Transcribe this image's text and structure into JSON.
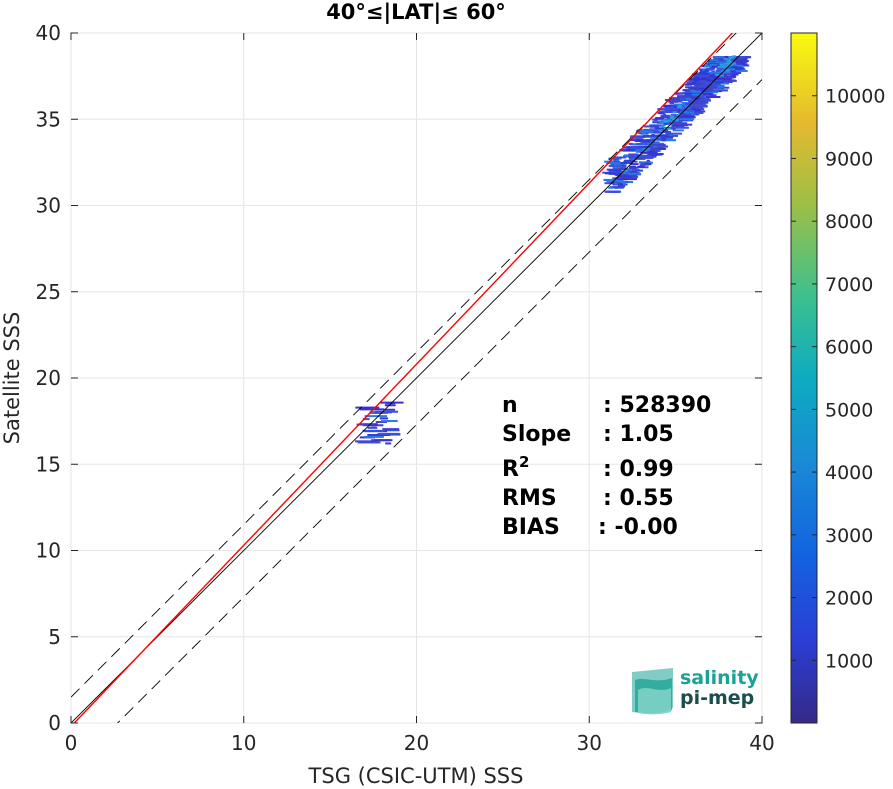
{
  "chart_data": {
    "type": "heatmap",
    "title": "40°≤|LAT|≤ 60°",
    "xlabel": "TSG (CSIC-UTM) SSS",
    "ylabel": "Satellite SSS",
    "xlim": [
      0,
      40
    ],
    "ylim": [
      0,
      40
    ],
    "xticks": [
      "0",
      "10",
      "20",
      "30",
      "40"
    ],
    "yticks": [
      "0",
      "5",
      "10",
      "15",
      "20",
      "25",
      "30",
      "35",
      "40"
    ],
    "grid": true,
    "colorbar": {
      "ticks": [
        "1000",
        "2000",
        "3000",
        "4000",
        "5000",
        "6000",
        "7000",
        "8000",
        "9000",
        "10000"
      ],
      "range": [
        0,
        11000
      ],
      "colormap": "parula"
    },
    "reference_lines": [
      {
        "name": "one-to-one",
        "slope": 1,
        "intercept": 0,
        "color": "#000000",
        "style": "solid"
      },
      {
        "name": "upper-bound",
        "slope": 1,
        "intercept": 1.5,
        "color": "#000000",
        "style": "dashed"
      },
      {
        "name": "lower-bound",
        "slope": 1,
        "intercept": -2.7,
        "color": "#000000",
        "style": "dashed"
      },
      {
        "name": "fit",
        "slope": 1.05,
        "intercept": -0.2,
        "color": "#ff0000",
        "style": "solid"
      }
    ],
    "clusters": [
      {
        "x": [
          17.0,
          18.6
        ],
        "y": [
          16.2,
          18.7
        ],
        "density": "low"
      },
      {
        "x": [
          31.2,
          36.5
        ],
        "y": [
          30.8,
          36.5
        ],
        "density": "medium"
      },
      {
        "x": [
          35.5,
          38.9
        ],
        "y": [
          35.0,
          38.6
        ],
        "density": "medium"
      }
    ],
    "stats": [
      {
        "label": "n",
        "value": ": 528390"
      },
      {
        "label": "Slope",
        "value": ": 1.05"
      },
      {
        "label": "R2",
        "value": ": 0.99"
      },
      {
        "label": "RMS",
        "value": ": 0.55"
      },
      {
        "label": "BIAS",
        "value": ": -0.00"
      }
    ]
  },
  "logo": {
    "line1": "salinity",
    "line2": "pi-mep"
  },
  "colors": {
    "fit_line": "#ff0000",
    "reference": "#000000",
    "cluster_low": "#3d2fd2",
    "cluster_high": "#2c9ae0",
    "logo_teal": "#1aa394",
    "logo_dark": "#1c4e4e"
  }
}
